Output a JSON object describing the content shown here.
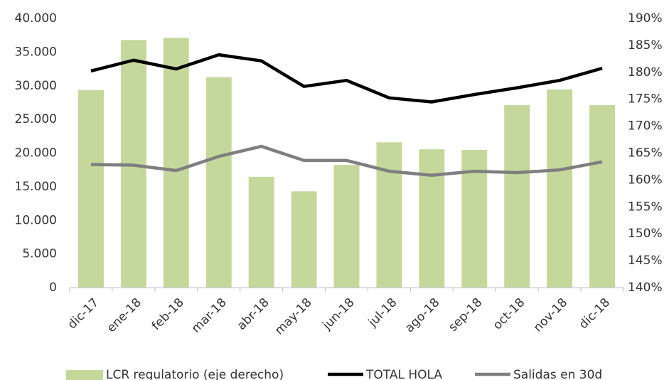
{
  "chart_data": {
    "type": "bar_line",
    "categories": [
      "dic-17",
      "ene-18",
      "feb-18",
      "mar-18",
      "abr-18",
      "may-18",
      "jun-18",
      "jul-18",
      "ago-18",
      "sep-18",
      "oct-18",
      "nov-18",
      "dic-18"
    ],
    "series": [
      {
        "name": "LCR regulatorio (eje derecho)",
        "type": "bar",
        "axis": "y2",
        "color": "#c5d89b",
        "values": [
          176.7,
          186.0,
          186.4,
          179.1,
          160.6,
          157.9,
          162.8,
          167.0,
          165.7,
          165.6,
          173.9,
          176.8,
          173.9
        ]
      },
      {
        "name": "TOTAL HOLA",
        "type": "line",
        "color": "#000000",
        "values": [
          32200,
          33800,
          32500,
          34600,
          33700,
          29900,
          30800,
          28200,
          27600,
          28700,
          29700,
          30800,
          32600
        ]
      },
      {
        "name": "Salidas en 30d",
        "type": "line",
        "color": "#7f7f7f",
        "values": [
          18300,
          18200,
          17400,
          19500,
          21000,
          18900,
          18900,
          17300,
          16700,
          17300,
          17100,
          17500,
          18700
        ]
      }
    ],
    "ylim": [
      0,
      40000
    ],
    "yticks": [
      0,
      {
        "value": 5000,
        "label": "5.000"
      },
      {
        "value": 10000,
        "label": "10.000"
      },
      {
        "value": 15000,
        "label": "15.000"
      },
      {
        "value": 20000,
        "label": "20.000"
      },
      {
        "value": 25000,
        "label": "25.000"
      },
      {
        "value": 30000,
        "label": "30.000"
      },
      {
        "value": 35000,
        "label": "35.000"
      },
      {
        "value": 40000,
        "label": "40.000"
      }
    ],
    "y2lim": [
      140,
      190
    ],
    "y2ticks": [
      {
        "value": 140,
        "label": "140%"
      },
      {
        "value": 145,
        "label": "145%"
      },
      {
        "value": 150,
        "label": "150%"
      },
      {
        "value": 155,
        "label": "155%"
      },
      {
        "value": 160,
        "label": "160%"
      },
      {
        "value": 165,
        "label": "165%"
      },
      {
        "value": 170,
        "label": "170%"
      },
      {
        "value": 175,
        "label": "175%"
      },
      {
        "value": 180,
        "label": "180%"
      },
      {
        "value": 185,
        "label": "185%"
      },
      {
        "value": 190,
        "label": "190%"
      }
    ],
    "legend": "bottom"
  }
}
